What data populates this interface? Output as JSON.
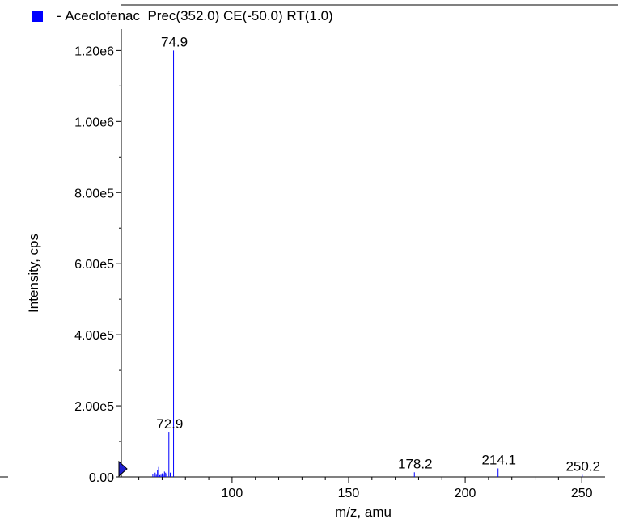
{
  "legend": {
    "marker": "- ",
    "text": "Aceclofenac  Prec(352.0) CE(-50.0) RT(1.0)",
    "color": "#0000ff"
  },
  "chart_data": {
    "type": "bar",
    "title": "",
    "xlabel": "m/z, amu",
    "ylabel": "Intensity, cps",
    "xlim": [
      52.5,
      260
    ],
    "ylim": [
      0,
      1260000
    ],
    "x_ticks": [
      100,
      150,
      200,
      250
    ],
    "x_tick_labels": [
      "100",
      "150",
      "200",
      "250"
    ],
    "y_ticks": [
      0,
      200000,
      400000,
      600000,
      800000,
      1000000,
      1200000
    ],
    "y_tick_labels": [
      "0.00",
      "2.00e5",
      "4.00e5",
      "6.00e5",
      "8.00e5",
      "1.00e6",
      "1.20e6"
    ],
    "series_color": "#0000ff",
    "peaks": {
      "x": [
        66.0,
        67.0,
        67.5,
        68.0,
        68.5,
        69.0,
        69.5,
        70.0,
        70.5,
        71.0,
        71.5,
        72.0,
        72.9,
        73.5,
        74.9
      ],
      "y": [
        8000,
        12000,
        6000,
        20000,
        28000,
        5000,
        6000,
        10000,
        6000,
        15000,
        12000,
        9000,
        125000,
        12000,
        1200000
      ]
    },
    "minor_peaks": {
      "x": [
        178.2,
        214.1,
        250.2
      ],
      "y": [
        13000,
        24000,
        6000
      ]
    },
    "annotations": [
      {
        "x": 74.9,
        "label": "74.9"
      },
      {
        "x": 72.9,
        "label": "72.9"
      },
      {
        "x": 178.2,
        "label": "178.2"
      },
      {
        "x": 214.1,
        "label": "214.1"
      },
      {
        "x": 250.2,
        "label": "250.2"
      }
    ],
    "grid": false,
    "legend_position": "top-left"
  }
}
